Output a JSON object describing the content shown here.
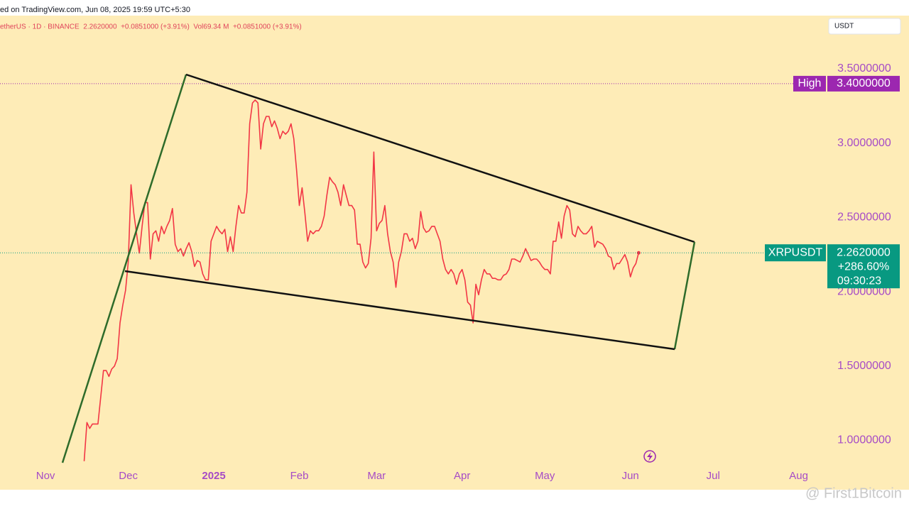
{
  "chart_data": {
    "type": "line",
    "title": "ed on TradingView.com, Jun 08, 2025 19:59 UTC+5:30",
    "subtitle": "etherUS · 1D · BINANCE  2.2620000  +0.0851000 (+3.91%)  Vol69.34 M  +0.0851000 (+3.91%)",
    "currency": "USDT",
    "symbol": "XRPUSDT",
    "high_label": "High",
    "high": {
      "value": 3.4,
      "label": "3.4000000"
    },
    "last_price": {
      "value": 2.262,
      "label": "2.2620000"
    },
    "change_label": "+286.60%",
    "countdown": "09:30:23",
    "watermark": "@ First1Bitcoin",
    "xlim": [
      -16.5,
      282.1
    ],
    "xticks": [
      {
        "value": 0,
        "label": "Nov"
      },
      {
        "value": 30,
        "label": "Dec"
      },
      {
        "value": 61,
        "label": "2025"
      },
      {
        "value": 92,
        "label": "Feb"
      },
      {
        "value": 120,
        "label": "Mar"
      },
      {
        "value": 151,
        "label": "Apr"
      },
      {
        "value": 181,
        "label": "May"
      },
      {
        "value": 212,
        "label": "Jun"
      },
      {
        "value": 242,
        "label": "Jul"
      },
      {
        "value": 273,
        "label": "Aug"
      }
    ],
    "ylim": [
      0.668,
      3.858
    ],
    "yticks": [
      {
        "value": 1.0,
        "label": "1.0000000"
      },
      {
        "value": 1.5,
        "label": "1.5000000"
      },
      {
        "value": 2.0,
        "label": "2.0000000"
      },
      {
        "value": 2.5,
        "label": "2.5000000"
      },
      {
        "value": 3.0,
        "label": "3.0000000"
      },
      {
        "value": 3.5,
        "label": "3.5000000"
      }
    ],
    "x": [
      14,
      15,
      16,
      17,
      19,
      20,
      21,
      22,
      23,
      24,
      25,
      26,
      27,
      28,
      29,
      30,
      31,
      32,
      33,
      34,
      35,
      36,
      37,
      38,
      39,
      40,
      41,
      42,
      43,
      44,
      45,
      46,
      47,
      48,
      49,
      50,
      51,
      52,
      53,
      54,
      55,
      56,
      57,
      58,
      59,
      60,
      61,
      62,
      63,
      64,
      65,
      66,
      67,
      68,
      69,
      70,
      71,
      72,
      73,
      74,
      75,
      76,
      77,
      78,
      79,
      80,
      81,
      82,
      83,
      84,
      85,
      86,
      87,
      88,
      89,
      90,
      91,
      92,
      93,
      94,
      95,
      96,
      97,
      98,
      99,
      100,
      101,
      102,
      103,
      104,
      105,
      106,
      107,
      108,
      109,
      110,
      111,
      112,
      113,
      114,
      115,
      116,
      117,
      118,
      119,
      120,
      121,
      122,
      123,
      124,
      125,
      126,
      127,
      128,
      129,
      130,
      131,
      132,
      133,
      134,
      135,
      136,
      137,
      138,
      139,
      140,
      141,
      142,
      143,
      144,
      145,
      146,
      147,
      148,
      149,
      150,
      151,
      152,
      153,
      154,
      155,
      156,
      157,
      158,
      159,
      160,
      161,
      162,
      163,
      164,
      165,
      166,
      167,
      168,
      169,
      170,
      171,
      172,
      173,
      174,
      175,
      176,
      177,
      178,
      179,
      180,
      181,
      182,
      183,
      184,
      185,
      186,
      187,
      188,
      189,
      190,
      191,
      192,
      193,
      194,
      195,
      196,
      197,
      198,
      199,
      200,
      201,
      202,
      203,
      204,
      205,
      206,
      207,
      208,
      209,
      210,
      211,
      212,
      213,
      214,
      215
    ],
    "series": [
      {
        "name": "XRPUSDT",
        "color": "#f23645",
        "values": [
          0.86,
          1.12,
          1.08,
          1.11,
          1.11,
          1.29,
          1.47,
          1.47,
          1.43,
          1.48,
          1.5,
          1.55,
          1.79,
          1.91,
          2.01,
          2.2,
          2.72,
          2.53,
          2.39,
          2.26,
          2.44,
          2.6,
          2.6,
          2.22,
          2.39,
          2.41,
          2.34,
          2.44,
          2.39,
          2.44,
          2.48,
          2.56,
          2.32,
          2.27,
          2.29,
          2.24,
          2.29,
          2.33,
          2.27,
          2.17,
          2.21,
          2.2,
          2.12,
          2.08,
          2.08,
          2.34,
          2.39,
          2.44,
          2.41,
          2.39,
          2.42,
          2.27,
          2.37,
          2.27,
          2.44,
          2.58,
          2.53,
          2.53,
          2.67,
          3.13,
          3.27,
          3.29,
          3.27,
          2.96,
          3.13,
          3.18,
          3.18,
          3.11,
          3.15,
          3.1,
          3.03,
          3.08,
          3.06,
          3.08,
          3.13,
          3.03,
          2.82,
          2.58,
          2.7,
          2.53,
          2.34,
          2.41,
          2.39,
          2.41,
          2.41,
          2.44,
          2.51,
          2.65,
          2.77,
          2.74,
          2.72,
          2.67,
          2.58,
          2.72,
          2.65,
          2.58,
          2.58,
          2.55,
          2.32,
          2.32,
          2.2,
          2.16,
          2.19,
          2.36,
          2.94,
          2.41,
          2.46,
          2.48,
          2.58,
          2.39,
          2.27,
          2.2,
          2.03,
          2.2,
          2.27,
          2.39,
          2.39,
          2.34,
          2.36,
          2.29,
          2.34,
          2.54,
          2.43,
          2.4,
          2.41,
          2.44,
          2.44,
          2.39,
          2.34,
          2.22,
          2.15,
          2.12,
          2.15,
          2.12,
          2.05,
          2.12,
          2.15,
          2.08,
          1.93,
          1.91,
          1.79,
          2.05,
          1.98,
          2.08,
          2.15,
          2.12,
          2.12,
          2.09,
          2.09,
          2.08,
          2.08,
          2.11,
          2.12,
          2.15,
          2.22,
          2.22,
          2.21,
          2.2,
          2.24,
          2.29,
          2.25,
          2.21,
          2.22,
          2.22,
          2.2,
          2.17,
          2.15,
          2.15,
          2.12,
          2.34,
          2.34,
          2.47,
          2.36,
          2.51,
          2.58,
          2.55,
          2.39,
          2.37,
          2.44,
          2.41,
          2.39,
          2.39,
          2.41,
          2.44,
          2.3,
          2.34,
          2.33,
          2.32,
          2.29,
          2.24,
          2.23,
          2.15,
          2.19,
          2.19,
          2.22,
          2.25,
          2.2,
          2.1,
          2.16,
          2.19,
          2.262
        ]
      }
    ],
    "axis_color": "#a64bc6",
    "high_color": "#9c27b0",
    "price_color": "#089981"
  }
}
